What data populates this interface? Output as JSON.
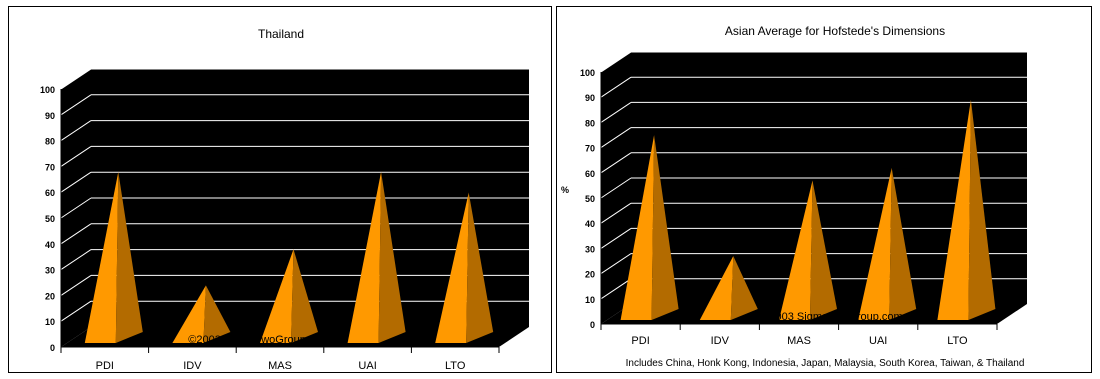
{
  "chart_data": [
    {
      "type": "bar",
      "bar_shape": "3d-pyramid",
      "title": "Thailand",
      "categories": [
        "PDI",
        "IDV",
        "MAS",
        "UAI",
        "LTO"
      ],
      "values": [
        64,
        20,
        34,
        64,
        56
      ],
      "ylim": [
        0,
        100
      ],
      "yticks": [
        "0",
        "10",
        "20",
        "30",
        "40",
        "50",
        "60",
        "70",
        "80",
        "90",
        "100"
      ],
      "ylabel": "",
      "grid": true,
      "plot_background": "#000000",
      "gridline_color": "#ffffff",
      "bar_color": "#ff9900",
      "bar_shade_color": "#b36b00",
      "watermark": "©2003 SigmaTwoGroup.com",
      "footnote": ""
    },
    {
      "type": "bar",
      "bar_shape": "3d-pyramid",
      "title": "Asian Average for Hofstede's Dimensions",
      "categories": [
        "PDI",
        "IDV",
        "MAS",
        "UAI",
        "LTO"
      ],
      "values": [
        71,
        23,
        53,
        58,
        85
      ],
      "ylim": [
        0,
        100
      ],
      "yticks": [
        "0",
        "10",
        "20",
        "30",
        "40",
        "50",
        "60",
        "70",
        "80",
        "90",
        "100"
      ],
      "ylabel": "%",
      "grid": true,
      "plot_background": "#000000",
      "gridline_color": "#ffffff",
      "bar_color": "#ff9900",
      "bar_shade_color": "#b36b00",
      "watermark": "©2003 SigmaTwoGroup.com",
      "footnote": "Includes China, Honk Kong, Indonesia, Japan, Malaysia, South Korea, Taiwan, & Thailand"
    }
  ]
}
